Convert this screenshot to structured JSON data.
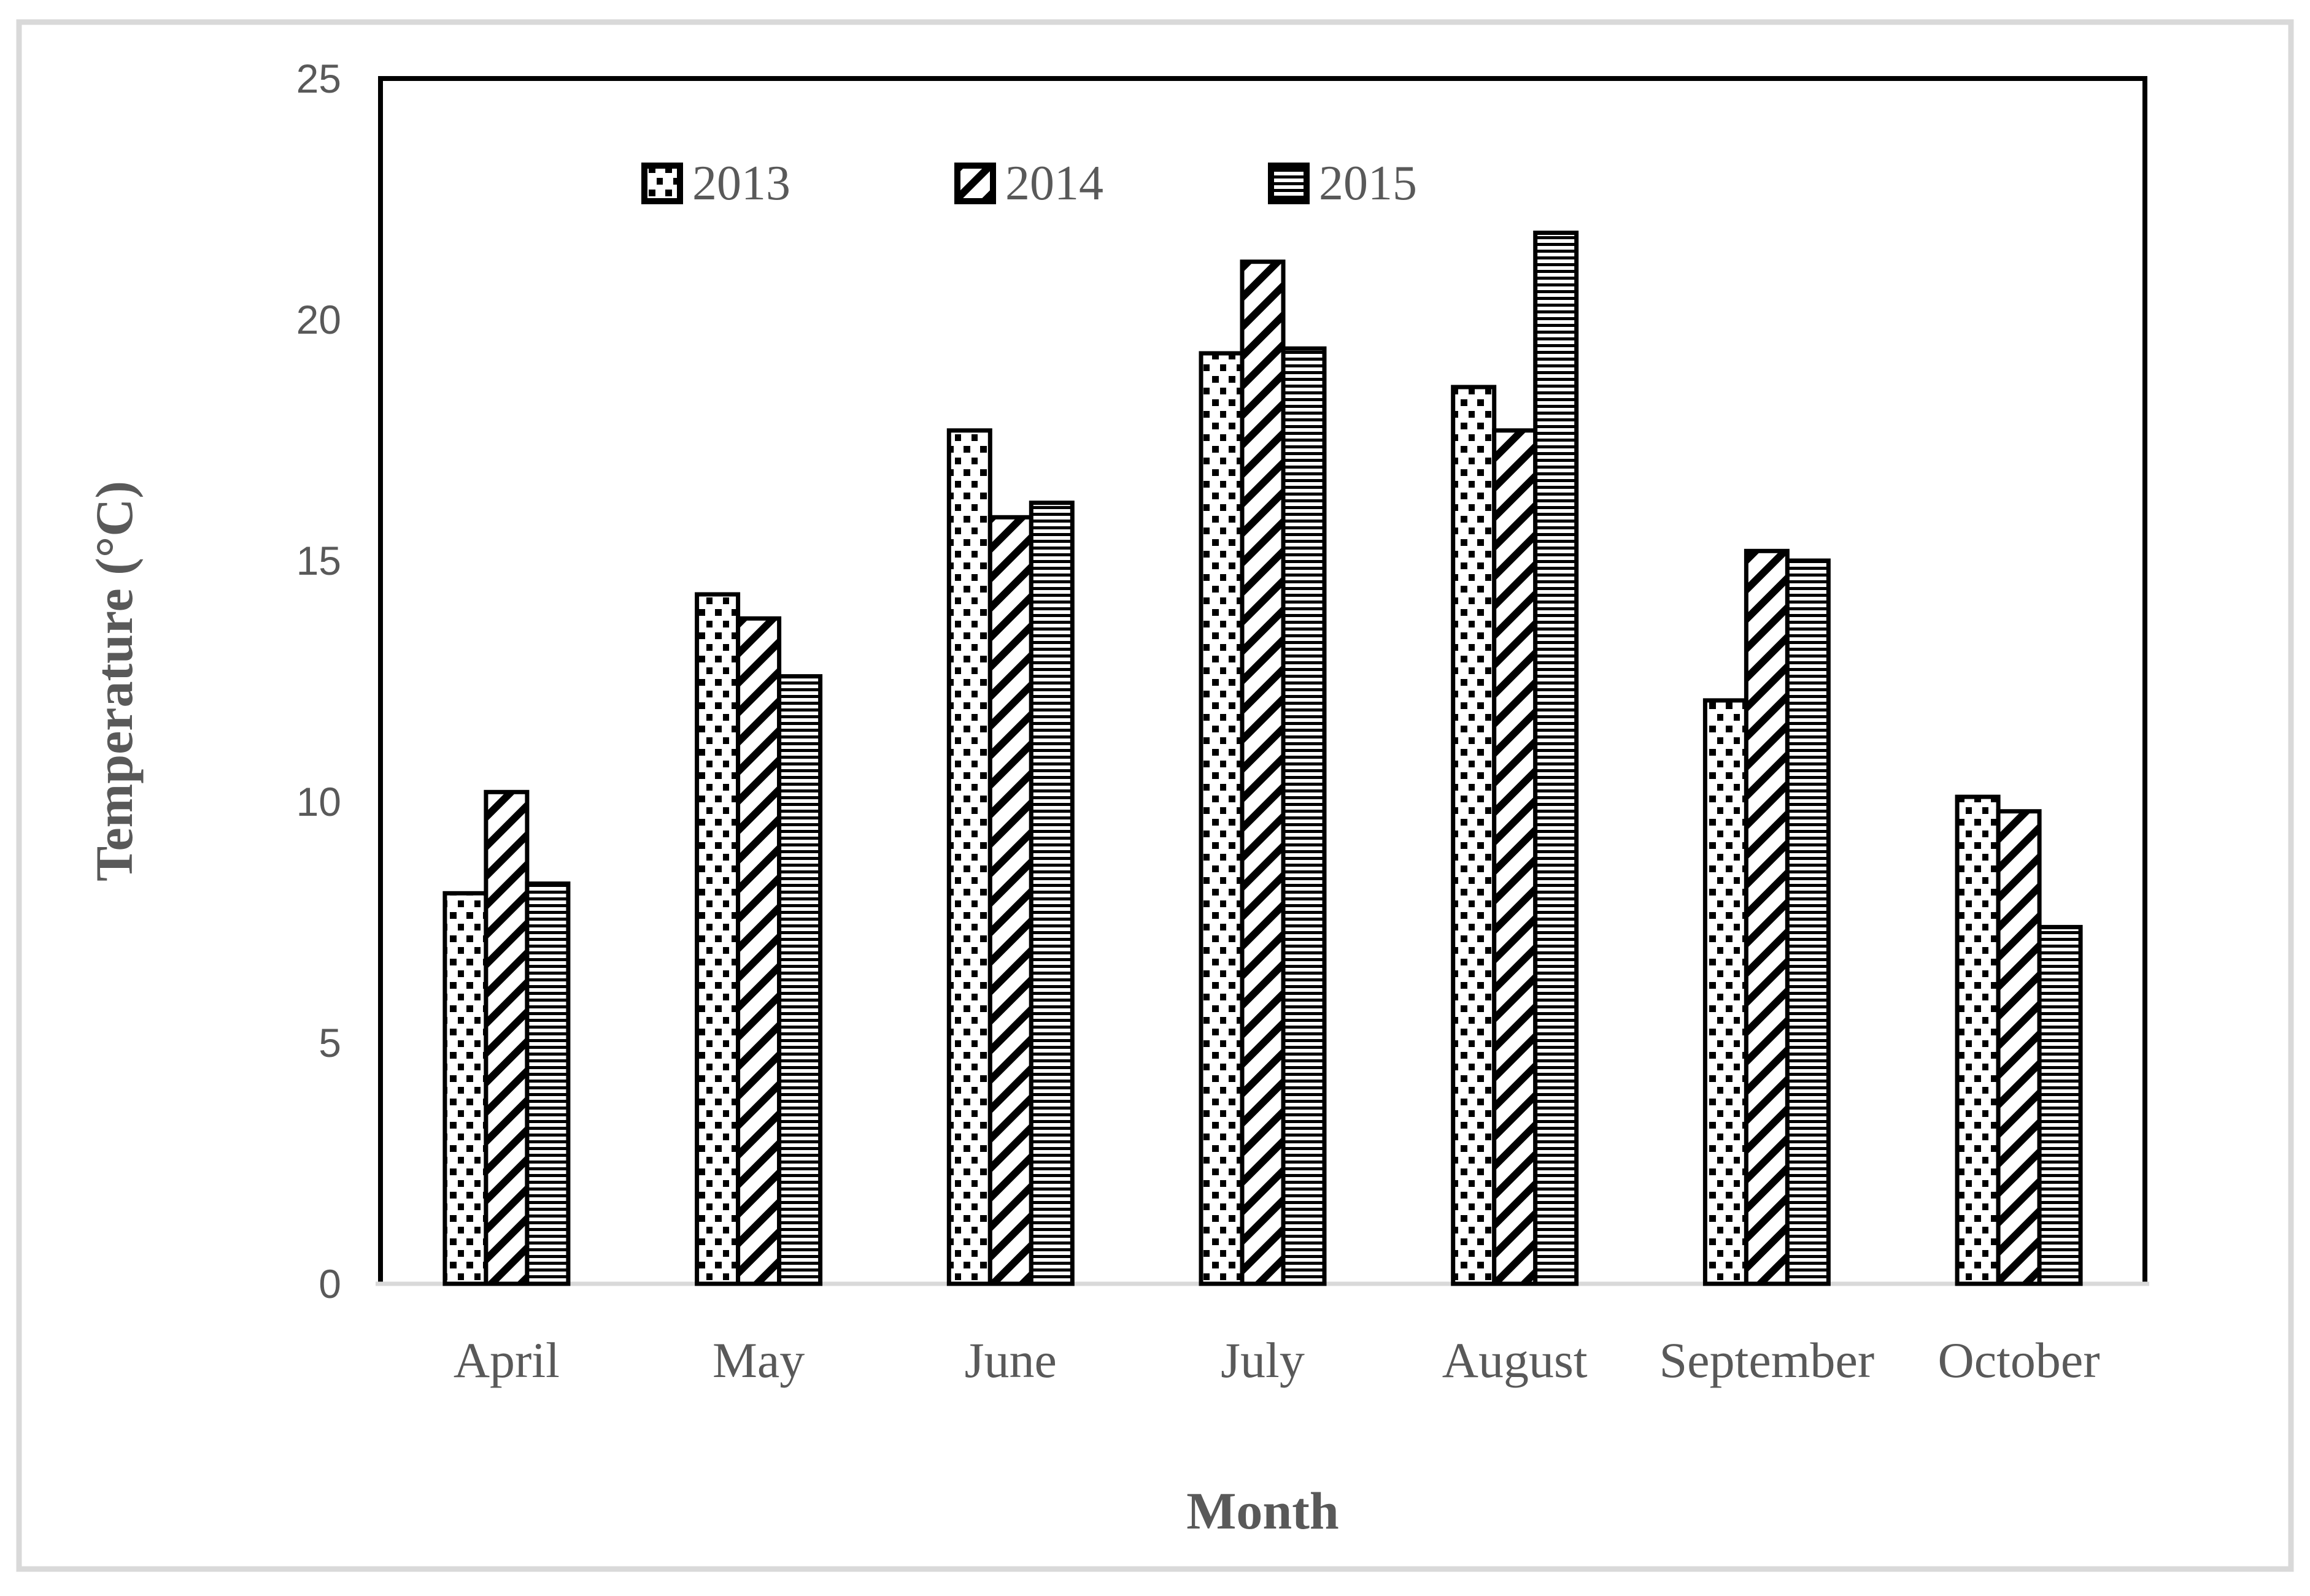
{
  "figure": {
    "frame_color": "#d9d9d9",
    "background": "#ffffff",
    "text_color": "#595959",
    "bar_outline_color": "#000000"
  },
  "chart_data": {
    "type": "bar",
    "title": "",
    "categories": [
      "April",
      "May",
      "June",
      "July",
      "August",
      "September",
      "October"
    ],
    "series": [
      {
        "name": "2013",
        "pattern": "dots",
        "values": [
          8.1,
          14.3,
          17.7,
          19.3,
          18.6,
          12.1,
          10.1
        ]
      },
      {
        "name": "2014",
        "pattern": "diagonal-stripes",
        "values": [
          10.2,
          13.8,
          15.9,
          21.2,
          17.7,
          15.2,
          9.8
        ]
      },
      {
        "name": "2015",
        "pattern": "horizontal-stripes",
        "values": [
          8.3,
          12.6,
          16.2,
          19.4,
          21.8,
          15.0,
          7.4
        ]
      }
    ],
    "xlabel": "Month",
    "ylabel": "Temperature (°C)",
    "ylim": [
      0,
      25
    ],
    "yticks": [
      "0",
      "5",
      "10",
      "15",
      "20",
      "25"
    ],
    "grid": false,
    "legend_position": "top-inside",
    "legend_entries": [
      "2013",
      "2014",
      "2015"
    ]
  }
}
